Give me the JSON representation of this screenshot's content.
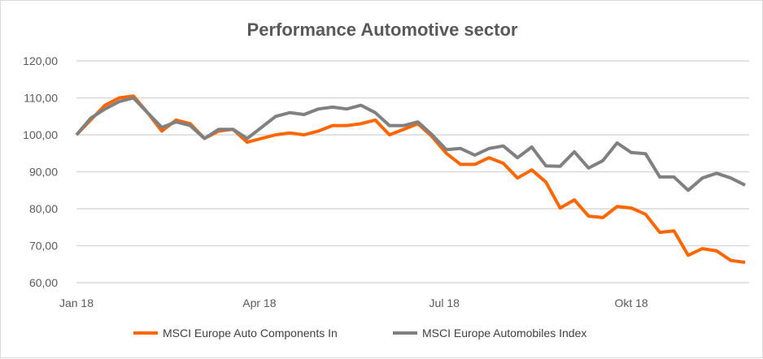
{
  "chart_data": {
    "type": "line",
    "title": "Performance Automotive sector",
    "xlabel": "",
    "ylabel": "",
    "ylim": [
      60,
      120
    ],
    "yticks": [
      "60,00",
      "70,00",
      "80,00",
      "90,00",
      "100,00",
      "110,00",
      "120,00"
    ],
    "xticks": [
      {
        "label": "Jan 18",
        "date": "2018-01-01"
      },
      {
        "label": "Apr 18",
        "date": "2018-04-01"
      },
      {
        "label": "Jul 18",
        "date": "2018-07-01"
      },
      {
        "label": "Okt 18",
        "date": "2018-10-01"
      }
    ],
    "grid": "horizontal",
    "legend": "bottom",
    "start_date": "2018-01-01",
    "x_step_days": 7,
    "series": [
      {
        "name": "MSCI Europe Auto Components In",
        "color": "#ff6600",
        "values": [
          100,
          104,
          108,
          110,
          110.5,
          106,
          101,
          104,
          103,
          99,
          101,
          101.5,
          98,
          99,
          100,
          100.5,
          100,
          101,
          102.5,
          102.5,
          103,
          104,
          100,
          101.5,
          103,
          99.5,
          95,
          92,
          92,
          93.8,
          92.3,
          88.3,
          90.5,
          87.2,
          80.2,
          82.4,
          78,
          77.6,
          80.6,
          80.2,
          78.5,
          73.6,
          74,
          67.4,
          69.2,
          68.6,
          66,
          65.5
        ]
      },
      {
        "name": "MSCI Europe Automobiles Index",
        "color": "#808080",
        "values": [
          100,
          104.5,
          107,
          109,
          110,
          106,
          102,
          103.5,
          102.5,
          99,
          101.5,
          101.5,
          99,
          102,
          105,
          106,
          105.5,
          107,
          107.5,
          107,
          108,
          106,
          102.5,
          102.5,
          103.5,
          100,
          96,
          96.3,
          94.5,
          96.3,
          97,
          93.8,
          96.7,
          91.6,
          91.5,
          95.4,
          91,
          93,
          97.8,
          95.2,
          94.9,
          88.6,
          88.6,
          85,
          88.3,
          89.6,
          88.3,
          86.4
        ]
      }
    ]
  }
}
